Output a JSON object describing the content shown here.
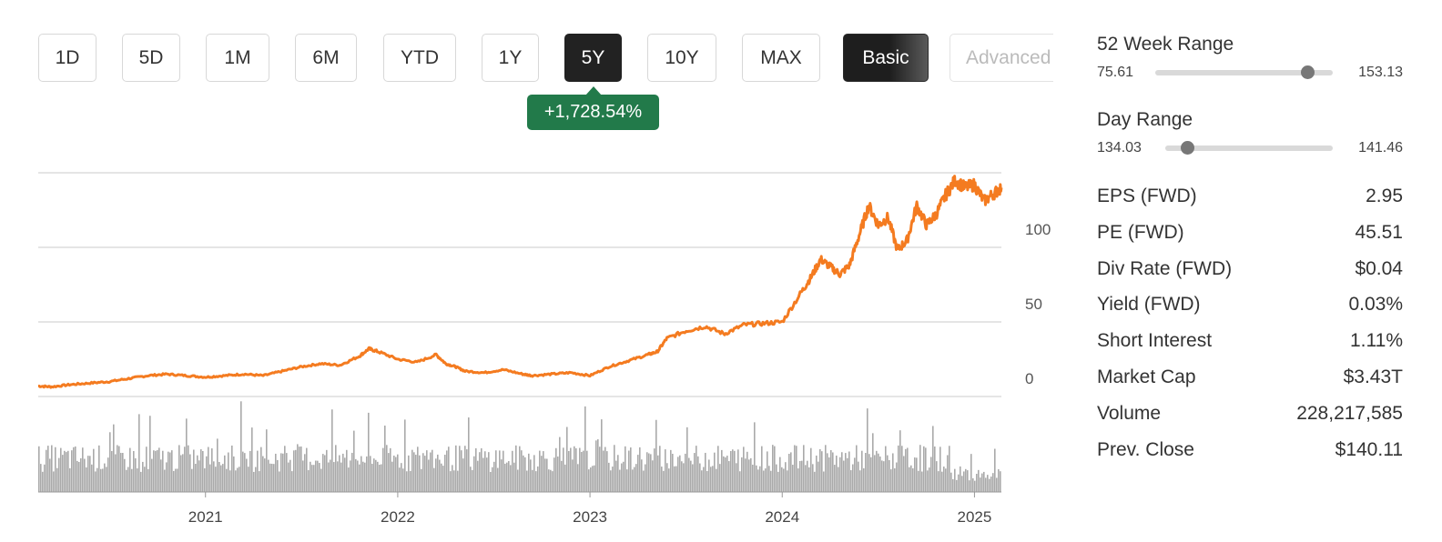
{
  "tabs": [
    {
      "label": "1D",
      "active": false
    },
    {
      "label": "5D",
      "active": false
    },
    {
      "label": "1M",
      "active": false
    },
    {
      "label": "6M",
      "active": false
    },
    {
      "label": "YTD",
      "active": false
    },
    {
      "label": "1Y",
      "active": false
    },
    {
      "label": "5Y",
      "active": true
    },
    {
      "label": "10Y",
      "active": false
    },
    {
      "label": "MAX",
      "active": false
    }
  ],
  "mode_tabs": {
    "basic": "Basic",
    "advanced": "Advanced"
  },
  "change_badge": "+1,728.54%",
  "colors": {
    "line": "#f47b20",
    "volume": "#a9a9a9",
    "badge": "#227a4a",
    "active_tab": "#222222"
  },
  "week52_range": {
    "title": "52 Week Range",
    "low": "75.61",
    "high": "153.13",
    "current": 142.0
  },
  "day_range": {
    "title": "Day Range",
    "low": "134.03",
    "high": "141.46",
    "current": 135.0
  },
  "stats": [
    {
      "label": "EPS (FWD)",
      "value": "2.95"
    },
    {
      "label": "PE (FWD)",
      "value": "45.51"
    },
    {
      "label": "Div Rate (FWD)",
      "value": "$0.04"
    },
    {
      "label": "Yield (FWD)",
      "value": "0.03%"
    },
    {
      "label": "Short Interest",
      "value": "1.11%"
    },
    {
      "label": "Market Cap",
      "value": "$3.43T"
    },
    {
      "label": "Volume",
      "value": "228,217,585"
    },
    {
      "label": "Prev. Close",
      "value": "$140.11"
    }
  ],
  "chart_data": {
    "type": "line",
    "title": "",
    "xlabel": "",
    "ylabel": "",
    "y_ticks": [
      0,
      50,
      100
    ],
    "ylim": [
      0,
      150
    ],
    "x_ticks": [
      {
        "label": "2021",
        "x": 2021.0
      },
      {
        "label": "2022",
        "x": 2022.0
      },
      {
        "label": "2023",
        "x": 2023.0
      },
      {
        "label": "2024",
        "x": 2024.0
      },
      {
        "label": "2025",
        "x": 2025.0
      }
    ],
    "xlim": [
      2020.13,
      2025.14
    ],
    "grid": true,
    "series": [
      {
        "values_x": [
          2020.13,
          2020.2,
          2020.3,
          2020.4,
          2020.5,
          2020.6,
          2020.7,
          2020.8,
          2020.9,
          2021.0,
          2021.1,
          2021.2,
          2021.3,
          2021.4,
          2021.5,
          2021.6,
          2021.7,
          2021.8,
          2021.85,
          2021.9,
          2022.0,
          2022.1,
          2022.2,
          2022.25,
          2022.3,
          2022.35,
          2022.45,
          2022.55,
          2022.65,
          2022.7,
          2022.8,
          2022.9,
          2023.0,
          2023.1,
          2023.2,
          2023.3,
          2023.35,
          2023.4,
          2023.5,
          2023.6,
          2023.7,
          2023.8,
          2023.9,
          2024.0,
          2024.1,
          2024.15,
          2024.2,
          2024.25,
          2024.3,
          2024.35,
          2024.4,
          2024.45,
          2024.5,
          2024.55,
          2024.6,
          2024.65,
          2024.7,
          2024.75,
          2024.8,
          2024.85,
          2024.9,
          2024.95,
          2025.0,
          2025.05,
          2025.1,
          2025.14
        ],
        "values_y": [
          7,
          6.5,
          8,
          9,
          10,
          12,
          14,
          15,
          14,
          13,
          14,
          15,
          14,
          17,
          20,
          22,
          21,
          27,
          32,
          30,
          25,
          23,
          28,
          22,
          20,
          17,
          16,
          18,
          15,
          14,
          15,
          16,
          14,
          20,
          24,
          28,
          30,
          39,
          44,
          47,
          42,
          48,
          49,
          50,
          70,
          80,
          92,
          87,
          82,
          88,
          108,
          128,
          115,
          120,
          98,
          105,
          128,
          115,
          122,
          135,
          145,
          140,
          142,
          131,
          136,
          140
        ]
      }
    ],
    "volume_series": {
      "description": "daily trading volume bars",
      "relative": true
    }
  }
}
